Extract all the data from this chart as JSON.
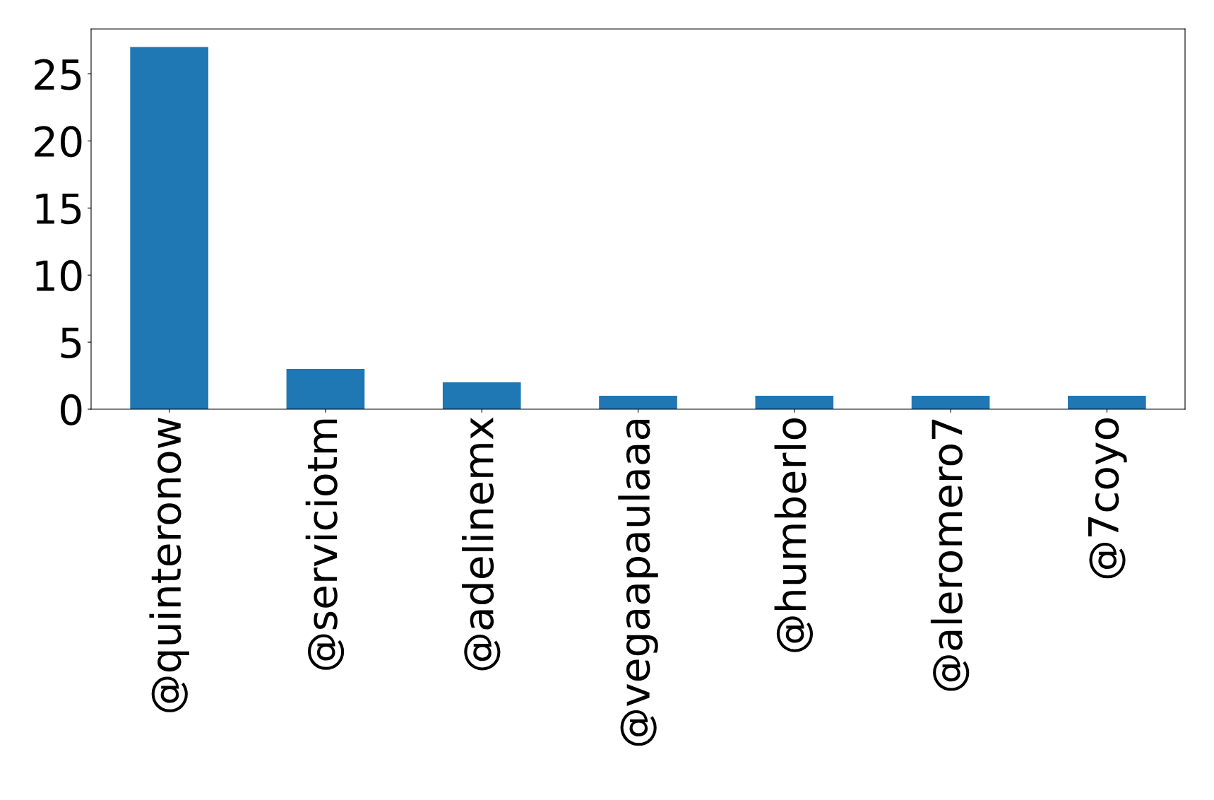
{
  "chart_data": {
    "type": "bar",
    "categories": [
      "@quinteronow",
      "@serviciotm",
      "@adelinemx",
      "@vegaapaulaaa",
      "@humberlo",
      "@aleromero7",
      "@7coyo"
    ],
    "values": [
      27,
      3,
      2,
      1,
      1,
      1,
      1
    ],
    "color": "#1f77b4",
    "ylim": [
      0,
      28.35
    ],
    "yticks": [
      0,
      5,
      10,
      15,
      20,
      25
    ],
    "grid": false
  }
}
